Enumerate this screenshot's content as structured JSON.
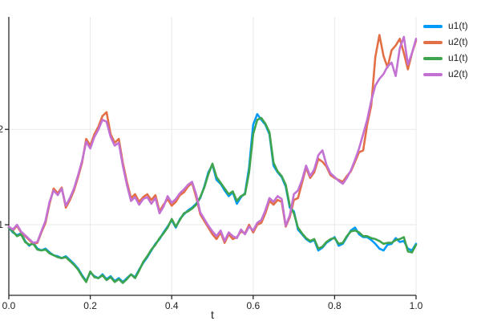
{
  "figure": {
    "background": "#FFFFFF",
    "axis_color": "#26282B",
    "grid_color": "#E9E9E9",
    "tick_label_color": "#222222",
    "axis_label_color": "#212121"
  },
  "legend": {
    "position": "outer-top-right",
    "entries": [
      "u1(t)",
      "u2(t)",
      "u1(t)",
      "u2(t)"
    ]
  },
  "chart_data": {
    "type": "line",
    "title": "",
    "xlabel": "t",
    "ylabel": "",
    "xlim": [
      0.0,
      1.0
    ],
    "ylim": [
      0.26,
      3.18
    ],
    "x_ticks": [
      0.0,
      0.2,
      0.4,
      0.6,
      0.8,
      1.0
    ],
    "x_tick_labels": [
      "0.0",
      "0.2",
      "0.4",
      "0.6",
      "0.8",
      "1.0"
    ],
    "y_ticks": [
      1,
      2
    ],
    "y_tick_labels": [
      "1",
      "2"
    ],
    "grid": true,
    "legend_position": "outer-top-right",
    "x_start": 0.0,
    "x_step": 0.01,
    "series": [
      {
        "name": "u1(t)",
        "color": "#009AFA",
        "values": [
          0.97,
          0.92,
          0.89,
          0.91,
          0.83,
          0.78,
          0.81,
          0.75,
          0.73,
          0.75,
          0.71,
          0.68,
          0.67,
          0.65,
          0.67,
          0.63,
          0.59,
          0.54,
          0.47,
          0.41,
          0.5,
          0.46,
          0.44,
          0.48,
          0.43,
          0.46,
          0.41,
          0.44,
          0.4,
          0.44,
          0.48,
          0.45,
          0.53,
          0.6,
          0.66,
          0.73,
          0.8,
          0.85,
          0.92,
          0.98,
          1.05,
          0.97,
          1.06,
          1.11,
          1.15,
          1.18,
          1.22,
          1.28,
          1.4,
          1.55,
          1.63,
          1.47,
          1.43,
          1.36,
          1.3,
          1.34,
          1.22,
          1.29,
          1.33,
          1.6,
          2.05,
          2.16,
          2.1,
          2.05,
          1.95,
          1.62,
          1.55,
          1.5,
          1.4,
          1.18,
          1.14,
          0.95,
          0.9,
          0.85,
          0.82,
          0.84,
          0.73,
          0.76,
          0.81,
          0.84,
          0.87,
          0.78,
          0.8,
          0.87,
          0.94,
          0.97,
          0.9,
          0.87,
          0.87,
          0.84,
          0.8,
          0.75,
          0.73,
          0.79,
          0.8,
          0.86,
          0.82,
          0.83,
          0.75,
          0.73,
          0.8
        ]
      },
      {
        "name": "u2(t)",
        "color": "#E36F47",
        "values": [
          0.97,
          0.94,
          0.99,
          0.92,
          0.88,
          0.84,
          0.8,
          0.81,
          0.92,
          1.02,
          1.22,
          1.38,
          1.33,
          1.39,
          1.18,
          1.26,
          1.36,
          1.5,
          1.65,
          1.9,
          1.83,
          1.95,
          2.03,
          2.14,
          2.18,
          1.95,
          1.86,
          1.9,
          1.65,
          1.45,
          1.28,
          1.32,
          1.24,
          1.29,
          1.32,
          1.26,
          1.31,
          1.14,
          1.21,
          1.27,
          1.2,
          1.24,
          1.31,
          1.34,
          1.4,
          1.44,
          1.29,
          1.11,
          1.04,
          0.97,
          0.9,
          0.85,
          0.92,
          0.81,
          0.9,
          0.85,
          0.87,
          0.93,
          0.91,
          1.0,
          0.92,
          1.0,
          1.02,
          1.12,
          1.25,
          1.21,
          1.26,
          1.24,
          0.98,
          1.08,
          1.26,
          1.28,
          1.44,
          1.6,
          1.49,
          1.55,
          1.69,
          1.66,
          1.61,
          1.52,
          1.49,
          1.47,
          1.45,
          1.51,
          1.56,
          1.66,
          1.76,
          1.78,
          2.05,
          2.25,
          2.76,
          2.99,
          2.77,
          2.65,
          2.83,
          2.88,
          2.95,
          2.8,
          2.63,
          2.8,
          2.93
        ]
      },
      {
        "name": "u1(t)",
        "color": "#3EA44E",
        "values": [
          0.97,
          0.93,
          0.88,
          0.9,
          0.82,
          0.79,
          0.8,
          0.74,
          0.73,
          0.74,
          0.7,
          0.68,
          0.66,
          0.65,
          0.66,
          0.62,
          0.58,
          0.53,
          0.46,
          0.4,
          0.51,
          0.45,
          0.44,
          0.47,
          0.42,
          0.45,
          0.4,
          0.43,
          0.39,
          0.43,
          0.48,
          0.44,
          0.52,
          0.61,
          0.67,
          0.74,
          0.79,
          0.86,
          0.91,
          0.97,
          1.06,
          0.98,
          1.05,
          1.12,
          1.14,
          1.17,
          1.21,
          1.29,
          1.39,
          1.53,
          1.64,
          1.5,
          1.44,
          1.38,
          1.32,
          1.35,
          1.25,
          1.3,
          1.32,
          1.55,
          1.95,
          2.1,
          2.12,
          2.06,
          1.97,
          1.65,
          1.56,
          1.51,
          1.42,
          1.2,
          1.12,
          0.97,
          0.91,
          0.86,
          0.83,
          0.85,
          0.75,
          0.77,
          0.82,
          0.85,
          0.86,
          0.8,
          0.81,
          0.88,
          0.93,
          0.94,
          0.92,
          0.88,
          0.88,
          0.86,
          0.85,
          0.83,
          0.8,
          0.81,
          0.81,
          0.84,
          0.85,
          0.87,
          0.72,
          0.71,
          0.79
        ]
      },
      {
        "name": "u2(t)",
        "color": "#C371D2",
        "values": [
          0.98,
          0.95,
          1.0,
          0.93,
          0.89,
          0.85,
          0.81,
          0.82,
          0.93,
          1.04,
          1.24,
          1.36,
          1.31,
          1.38,
          1.2,
          1.28,
          1.38,
          1.52,
          1.67,
          1.87,
          1.8,
          1.92,
          2.0,
          2.1,
          2.08,
          1.92,
          1.83,
          1.86,
          1.62,
          1.42,
          1.25,
          1.29,
          1.21,
          1.27,
          1.29,
          1.22,
          1.28,
          1.12,
          1.19,
          1.3,
          1.23,
          1.27,
          1.33,
          1.37,
          1.42,
          1.45,
          1.32,
          1.13,
          1.06,
          0.99,
          0.93,
          0.88,
          0.94,
          0.83,
          0.92,
          0.88,
          0.86,
          0.95,
          0.9,
          0.98,
          0.94,
          1.02,
          1.05,
          1.15,
          1.28,
          1.24,
          1.3,
          1.27,
          0.99,
          1.1,
          1.32,
          1.36,
          1.47,
          1.62,
          1.51,
          1.58,
          1.73,
          1.78,
          1.63,
          1.54,
          1.5,
          1.46,
          1.43,
          1.49,
          1.57,
          1.68,
          1.8,
          1.95,
          2.1,
          2.3,
          2.46,
          2.53,
          2.58,
          2.66,
          2.7,
          2.56,
          2.85,
          2.97,
          2.68,
          2.8,
          2.95
        ]
      }
    ]
  }
}
